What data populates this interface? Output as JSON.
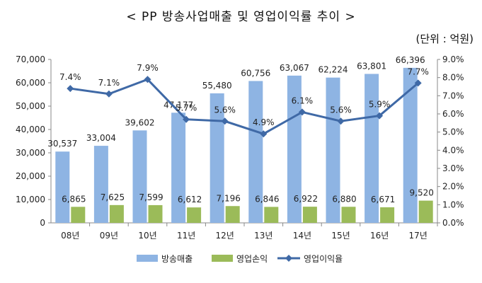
{
  "header": {
    "title": "< PP 방송사업매출 및 영업이익률 추이 >",
    "unit": "(단위 : 억원)"
  },
  "colors": {
    "revenue_bar": "#8EB4E3",
    "profit_bar": "#9BBB59",
    "margin_line": "#3F69A6"
  },
  "chart_data": {
    "type": "bar",
    "categories": [
      "08년",
      "09년",
      "10년",
      "11년",
      "12년",
      "13년",
      "14년",
      "15년",
      "16년",
      "17년"
    ],
    "series": [
      {
        "name": "방송매출",
        "type": "bar",
        "axis": "left",
        "values": [
          30537,
          33004,
          39602,
          47177,
          55480,
          60756,
          63067,
          62224,
          63801,
          66396
        ],
        "labels": [
          "30,537",
          "33,004",
          "39,602",
          "47,177",
          "55,480",
          "60,756",
          "63,067",
          "62,224",
          "63,801",
          "66,396"
        ]
      },
      {
        "name": "영업손익",
        "type": "bar",
        "axis": "left",
        "values": [
          6865,
          7625,
          7599,
          6612,
          7196,
          6846,
          6922,
          6880,
          6671,
          9520
        ],
        "labels": [
          "6,865",
          "7,625",
          "7,599",
          "6,612",
          "7,196",
          "6,846",
          "6,922",
          "6,880",
          "6,671",
          "9,520"
        ]
      },
      {
        "name": "영업이익율",
        "type": "line",
        "axis": "right",
        "values": [
          7.4,
          7.1,
          7.9,
          5.7,
          5.6,
          4.9,
          6.1,
          5.6,
          5.9,
          7.7
        ],
        "labels": [
          "7.4%",
          "7.1%",
          "7.9%",
          "5.7%",
          "5.6%",
          "4.9%",
          "6.1%",
          "5.6%",
          "5.9%",
          "7.7%"
        ]
      }
    ],
    "y_left": {
      "min": 0,
      "max": 70000,
      "ticks": [
        "0",
        "10,000",
        "20,000",
        "30,000",
        "40,000",
        "50,000",
        "60,000",
        "70,000"
      ]
    },
    "y_right": {
      "min": 0,
      "max": 9.0,
      "ticks": [
        "0.0%",
        "1.0%",
        "2.0%",
        "3.0%",
        "4.0%",
        "5.0%",
        "6.0%",
        "7.0%",
        "8.0%",
        "9.0%"
      ]
    },
    "grid": false,
    "legend": "bottom"
  }
}
